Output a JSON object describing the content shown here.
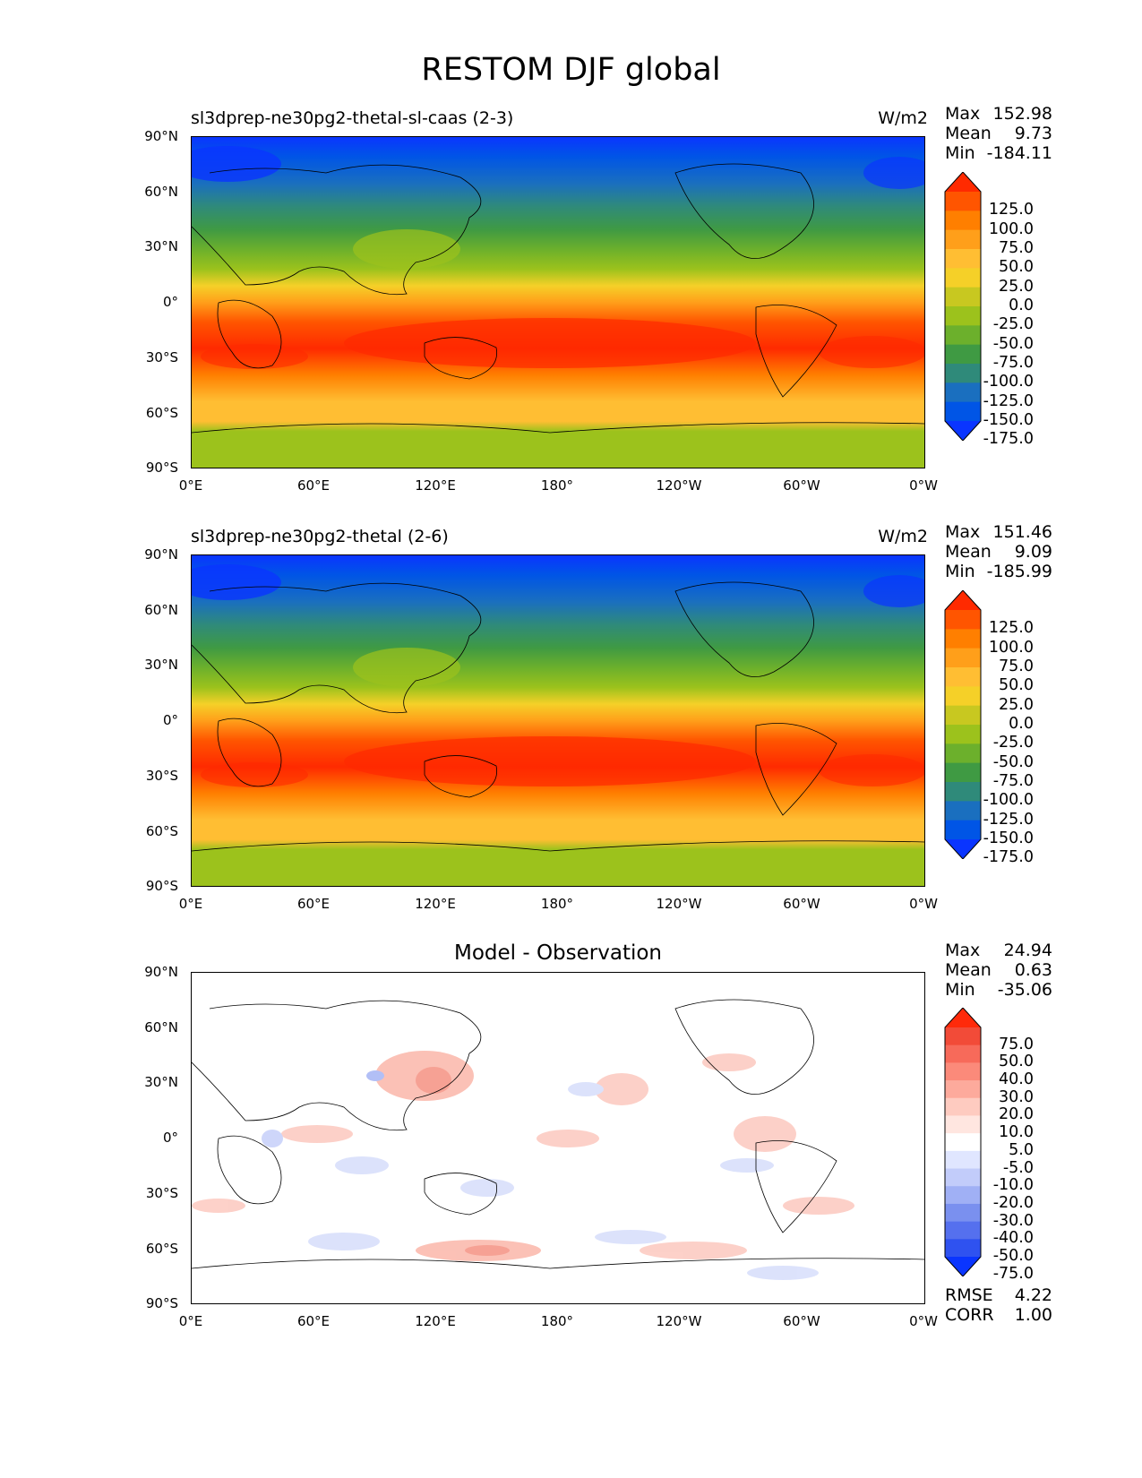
{
  "title": "RESTOM DJF global",
  "units": "W/m2",
  "panels": [
    {
      "left_title": "sl3dprep-ne30pg2-thetal-sl-caas (2-3)",
      "center_title": "",
      "right_title": "W/m2",
      "stats": [
        {
          "label": "Max",
          "value": "152.98"
        },
        {
          "label": "Mean",
          "value": "9.73"
        },
        {
          "label": "Min",
          "value": "-184.11"
        }
      ],
      "colorbar": {
        "levels": [
          "125.0",
          "100.0",
          "75.0",
          "50.0",
          "25.0",
          "0.0",
          "-25.0",
          "-50.0",
          "-75.0",
          "-100.0",
          "-125.0",
          "-150.0",
          "-175.0"
        ],
        "colors": [
          "#ff2a00",
          "#ff5500",
          "#ff7f00",
          "#ff9f1a",
          "#ffbe33",
          "#f5d028",
          "#c8c820",
          "#9cc21c",
          "#6cb02c",
          "#3f9a43",
          "#2f8a7a",
          "#1a6fbf",
          "#0055e6",
          "#0a35ff"
        ]
      }
    },
    {
      "left_title": "sl3dprep-ne30pg2-thetal (2-6)",
      "center_title": "",
      "right_title": "W/m2",
      "stats": [
        {
          "label": "Max",
          "value": "151.46"
        },
        {
          "label": "Mean",
          "value": "9.09"
        },
        {
          "label": "Min",
          "value": "-185.99"
        }
      ],
      "colorbar": {
        "levels": [
          "125.0",
          "100.0",
          "75.0",
          "50.0",
          "25.0",
          "0.0",
          "-25.0",
          "-50.0",
          "-75.0",
          "-100.0",
          "-125.0",
          "-150.0",
          "-175.0"
        ],
        "colors": [
          "#ff2a00",
          "#ff5500",
          "#ff7f00",
          "#ff9f1a",
          "#ffbe33",
          "#f5d028",
          "#c8c820",
          "#9cc21c",
          "#6cb02c",
          "#3f9a43",
          "#2f8a7a",
          "#1a6fbf",
          "#0055e6",
          "#0a35ff"
        ]
      }
    },
    {
      "left_title": "",
      "center_title": "Model - Observation",
      "right_title": "",
      "stats": [
        {
          "label": "Max",
          "value": "24.94"
        },
        {
          "label": "Mean",
          "value": "0.63"
        },
        {
          "label": "Min",
          "value": "-35.06"
        }
      ],
      "extra_stats": [
        {
          "label": "RMSE",
          "value": "4.22"
        },
        {
          "label": "CORR",
          "value": "1.00"
        }
      ],
      "colorbar": {
        "levels": [
          "75.0",
          "50.0",
          "40.0",
          "30.0",
          "20.0",
          "10.0",
          "5.0",
          "-5.0",
          "-10.0",
          "-20.0",
          "-30.0",
          "-40.0",
          "-50.0",
          "-75.0"
        ],
        "colors": [
          "#ff2a0a",
          "#f24b38",
          "#f76a5a",
          "#fb8a7a",
          "#fdaa9c",
          "#fecbc0",
          "#ffe6e0",
          "#ffffff",
          "#e0e6ff",
          "#c2ccfa",
          "#a0b0f5",
          "#7a90ef",
          "#5570ee",
          "#2f52f0",
          "#0a35ff"
        ]
      }
    }
  ],
  "axes": {
    "y_ticks": [
      "90°N",
      "60°N",
      "30°N",
      "0°",
      "30°S",
      "60°S",
      "90°S"
    ],
    "x_ticks": [
      "0°E",
      "60°E",
      "120°E",
      "180°",
      "120°W",
      "60°W",
      "0°W"
    ]
  }
}
